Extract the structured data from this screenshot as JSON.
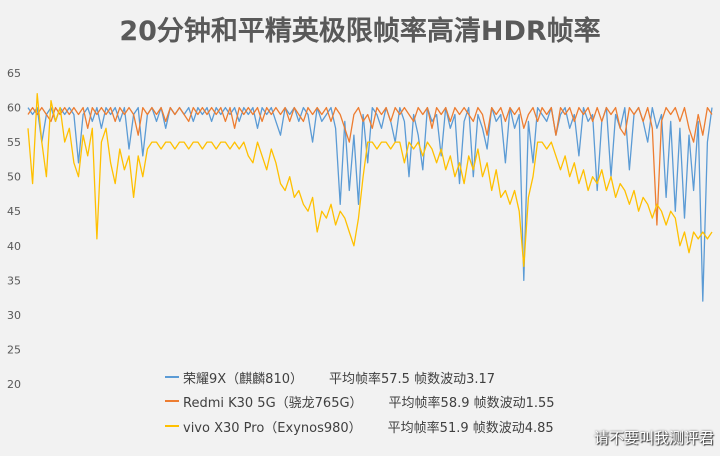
{
  "chart_data": {
    "type": "line",
    "title": "20分钟和平精英极限帧率高清HDR帧率",
    "xlabel": "",
    "ylabel": "",
    "ylim": [
      20,
      65
    ],
    "yticks": [
      65,
      60,
      55,
      50,
      45,
      40,
      35,
      30,
      25,
      20
    ],
    "grid": false,
    "legend_position": "bottom",
    "series": [
      {
        "name": "荣耀9X（麒麟810）",
        "stats": "平均帧率57.5 帧数波动3.17",
        "color": "#5b9bd5",
        "values": [
          60,
          59,
          60,
          55,
          59,
          60,
          58,
          60,
          59,
          60,
          59,
          52,
          59,
          60,
          58,
          60,
          57,
          60,
          59,
          60,
          58,
          60,
          54,
          59,
          60,
          53,
          59,
          60,
          58,
          60,
          57,
          60,
          59,
          60,
          59,
          60,
          58,
          60,
          59,
          60,
          58,
          60,
          59,
          60,
          59,
          60,
          58,
          60,
          59,
          60,
          57,
          60,
          59,
          60,
          58,
          56,
          60,
          59,
          60,
          58,
          60,
          59,
          55,
          60,
          58,
          59,
          60,
          57,
          46,
          58,
          48,
          56,
          46,
          59,
          52,
          60,
          59,
          57,
          60,
          58,
          55,
          60,
          58,
          50,
          59,
          56,
          51,
          60,
          58,
          59,
          53,
          60,
          57,
          59,
          49,
          58,
          60,
          50,
          59,
          57,
          54,
          60,
          58,
          59,
          52,
          60,
          57,
          59,
          35,
          58,
          52,
          60,
          59,
          58,
          60,
          56,
          59,
          60,
          57,
          59,
          53,
          60,
          58,
          59,
          48,
          58,
          60,
          50,
          59,
          57,
          60,
          51,
          59,
          60,
          58,
          55,
          60,
          57,
          59,
          47,
          58,
          45,
          57,
          44,
          56,
          48,
          58,
          32,
          55,
          60
        ]
      },
      {
        "name": "Redmi K30 5G（骁龙765G）",
        "stats": "平均帧率58.9 帧数波动1.55",
        "color": "#ed7d31",
        "values": [
          59,
          60,
          59,
          60,
          59,
          58,
          60,
          59,
          60,
          59,
          60,
          59,
          60,
          57,
          60,
          59,
          60,
          59,
          60,
          58,
          60,
          59,
          60,
          59,
          56,
          60,
          59,
          60,
          59,
          60,
          58,
          60,
          59,
          60,
          59,
          58,
          60,
          59,
          60,
          59,
          60,
          59,
          60,
          58,
          60,
          57,
          60,
          59,
          60,
          59,
          60,
          58,
          60,
          59,
          60,
          59,
          60,
          58,
          60,
          59,
          58,
          60,
          59,
          60,
          59,
          60,
          58,
          60,
          59,
          57,
          55,
          59,
          60,
          58,
          59,
          57,
          60,
          59,
          60,
          58,
          60,
          59,
          60,
          59,
          58,
          60,
          59,
          60,
          57,
          60,
          59,
          60,
          58,
          60,
          59,
          60,
          59,
          58,
          60,
          59,
          56,
          60,
          59,
          60,
          58,
          60,
          59,
          60,
          57,
          59,
          60,
          58,
          60,
          59,
          60,
          56,
          60,
          59,
          60,
          58,
          60,
          59,
          60,
          58,
          60,
          58,
          60,
          59,
          60,
          57,
          56,
          60,
          59,
          60,
          58,
          60,
          57,
          43,
          58,
          60,
          59,
          60,
          58,
          60,
          57,
          55,
          59,
          56,
          60,
          59
        ]
      },
      {
        "name": "vivo X30 Pro（Exynos980）",
        "stats": "平均帧率51.9 帧数波动4.85",
        "color": "#ffc000",
        "values": [
          57,
          49,
          62,
          55,
          50,
          61,
          58,
          60,
          55,
          57,
          52,
          50,
          56,
          53,
          57,
          41,
          55,
          57,
          52,
          49,
          54,
          51,
          53,
          47,
          53,
          50,
          54,
          55,
          55,
          54,
          55,
          55,
          54,
          55,
          55,
          54,
          55,
          55,
          54,
          55,
          55,
          54,
          55,
          55,
          54,
          55,
          54,
          55,
          53,
          52,
          55,
          53,
          51,
          54,
          52,
          49,
          48,
          50,
          47,
          48,
          46,
          45,
          47,
          42,
          45,
          44,
          46,
          43,
          45,
          44,
          42,
          40,
          44,
          50,
          55,
          55,
          54,
          55,
          55,
          54,
          55,
          55,
          52,
          55,
          54,
          55,
          53,
          55,
          54,
          52,
          54,
          51,
          53,
          50,
          52,
          49,
          53,
          51,
          54,
          50,
          52,
          48,
          51,
          47,
          48,
          46,
          48,
          45,
          37,
          47,
          50,
          55,
          55,
          54,
          55,
          53,
          51,
          53,
          50,
          52,
          49,
          51,
          48,
          50,
          49,
          51,
          48,
          50,
          47,
          49,
          48,
          46,
          48,
          45,
          47,
          46,
          44,
          46,
          45,
          43,
          45,
          44,
          40,
          42,
          39,
          42,
          41,
          42,
          41,
          42
        ]
      }
    ]
  },
  "watermark": "请不要叫我测评君"
}
